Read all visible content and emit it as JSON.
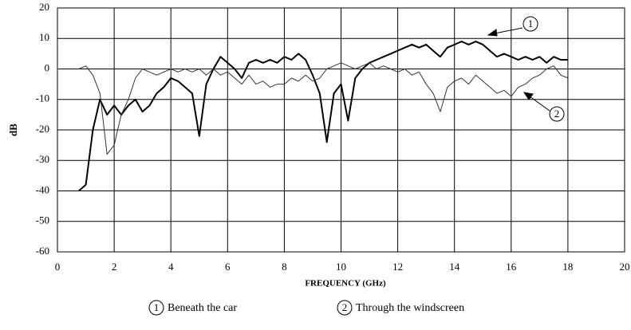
{
  "chart_data": {
    "type": "line",
    "xlabel": "FREQUENCY (GHz)",
    "ylabel": "dB",
    "xlim": [
      0,
      20
    ],
    "xticks": [
      0,
      2,
      4,
      6,
      8,
      10,
      12,
      14,
      16,
      18,
      20
    ],
    "ylim": [
      -60,
      20
    ],
    "yticks": [
      -60,
      -50,
      -40,
      -30,
      -20,
      -10,
      0,
      10,
      20
    ],
    "grid": true,
    "x": [
      0.75,
      1,
      1.25,
      1.5,
      1.75,
      2,
      2.25,
      2.5,
      2.75,
      3,
      3.25,
      3.5,
      3.75,
      4,
      4.25,
      4.5,
      4.75,
      5,
      5.25,
      5.5,
      5.75,
      6,
      6.25,
      6.5,
      6.75,
      7,
      7.25,
      7.5,
      7.75,
      8,
      8.25,
      8.5,
      8.75,
      9,
      9.25,
      9.5,
      9.75,
      10,
      10.25,
      10.5,
      10.75,
      11,
      11.25,
      11.5,
      11.75,
      12,
      12.25,
      12.5,
      12.75,
      13,
      13.25,
      13.5,
      13.75,
      14,
      14.25,
      14.5,
      14.75,
      15,
      15.25,
      15.5,
      15.75,
      16,
      16.25,
      16.5,
      16.75,
      17,
      17.25,
      17.5,
      17.75,
      18
    ],
    "series": [
      {
        "name": "Beneath the car",
        "label": "1",
        "color": "#000000",
        "width": 2,
        "values": [
          -40,
          -38,
          -20,
          -10,
          -15,
          -12,
          -15,
          -12,
          -10,
          -14,
          -12,
          -8,
          -6,
          -3,
          -4,
          -6,
          -8,
          -22,
          -5,
          0,
          4,
          2,
          0,
          -3,
          2,
          3,
          2,
          3,
          2,
          4,
          3,
          5,
          3,
          -2,
          -8,
          -24,
          -8,
          -5,
          -17,
          -3,
          0,
          2,
          3,
          4,
          5,
          6,
          7,
          8,
          7,
          8,
          6,
          4,
          7,
          8,
          9,
          8,
          9,
          8,
          6,
          4,
          5,
          4,
          3,
          4,
          3,
          4,
          2,
          4,
          3,
          3
        ]
      },
      {
        "name": "Through the windscreen",
        "label": "2",
        "color": "#333333",
        "width": 1,
        "values": [
          0,
          1,
          -2,
          -8,
          -28,
          -25,
          -15,
          -10,
          -3,
          0,
          -1,
          -2,
          -1,
          0,
          -1,
          0,
          -1,
          0,
          -2,
          0,
          -2,
          -1,
          -3,
          -5,
          -2,
          -5,
          -4,
          -6,
          -5,
          -5,
          -3,
          -4,
          -2,
          -4,
          -3,
          0,
          1,
          2,
          1,
          0,
          1,
          2,
          0,
          1,
          0,
          -1,
          0,
          -2,
          -1,
          -5,
          -8,
          -14,
          -6,
          -4,
          -3,
          -5,
          -2,
          -4,
          -6,
          -8,
          -7,
          -9,
          -6,
          -5,
          -3,
          -2,
          0,
          1,
          -2,
          -3
        ]
      }
    ]
  }
}
